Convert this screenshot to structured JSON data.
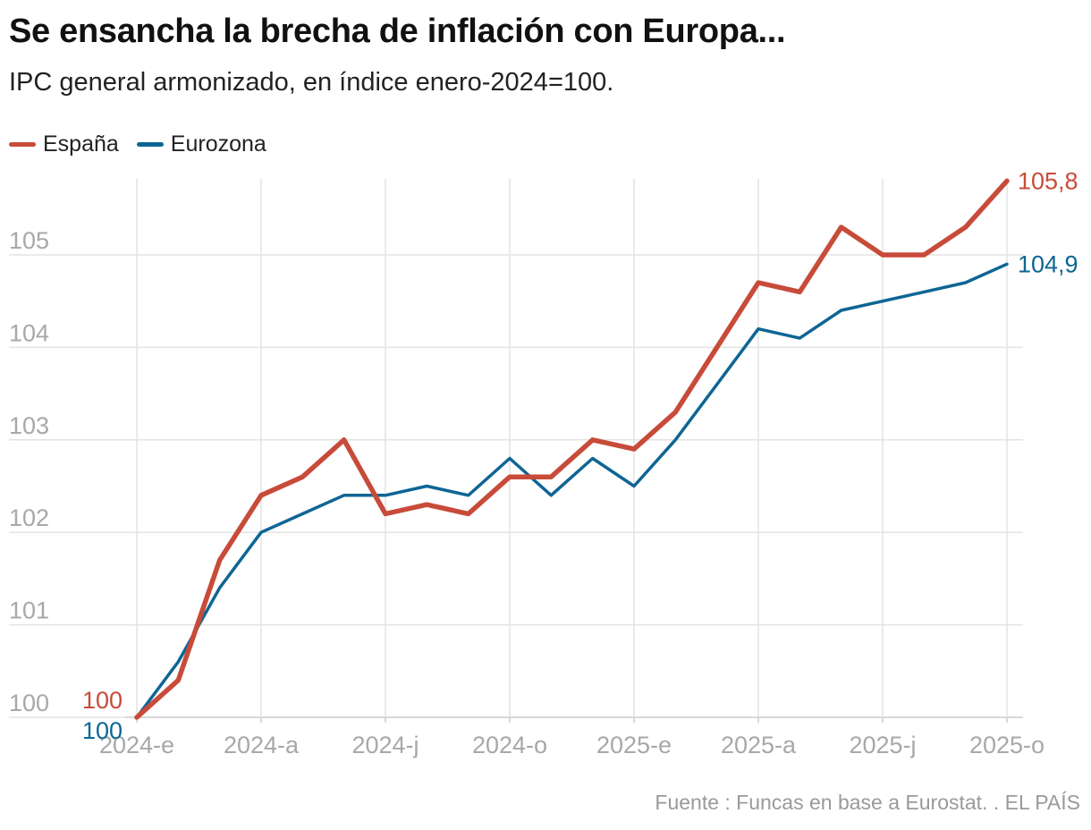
{
  "title": "Se ensancha la brecha de inflación con Europa...",
  "subtitle": "IPC general armonizado, en índice enero-2024=100.",
  "source": "Fuente : Funcas en base a Eurostat. . EL PAÍS",
  "colors": {
    "espana": "#c84b3a",
    "eurozona": "#0e6594",
    "grid": "#e3e3e3",
    "tick_label": "#a8a8a8"
  },
  "chart_data": {
    "type": "line",
    "title": "Se ensancha la brecha de inflación con Europa...",
    "subtitle": "IPC general armonizado, en índice enero-2024=100.",
    "xlabel": "",
    "ylabel": "",
    "ylim": [
      100,
      105.8
    ],
    "y_ticks": [
      100,
      101,
      102,
      103,
      104,
      105
    ],
    "y_tick_labels": [
      "100",
      "101",
      "102",
      "103",
      "104",
      "105"
    ],
    "x_tick_labels": [
      "2024-e",
      "2024-a",
      "2024-j",
      "2024-o",
      "2025-e",
      "2025-a",
      "2025-j",
      "2025-o"
    ],
    "x_tick_positions": [
      0,
      3,
      6,
      9,
      12,
      15,
      18,
      21
    ],
    "grid": true,
    "legend_position": "top-left",
    "series": [
      {
        "name": "España",
        "color": "#c84b3a",
        "values": [
          100.0,
          100.4,
          101.7,
          102.4,
          102.6,
          103.0,
          102.2,
          102.3,
          102.2,
          102.6,
          102.6,
          103.0,
          102.9,
          103.3,
          104.0,
          104.7,
          104.6,
          105.3,
          105.0,
          105.0,
          105.3,
          105.8
        ],
        "start_label": "100",
        "end_label": "105,8"
      },
      {
        "name": "Eurozona",
        "color": "#0e6594",
        "values": [
          100.0,
          100.6,
          101.4,
          102.0,
          102.2,
          102.4,
          102.4,
          102.5,
          102.4,
          102.8,
          102.4,
          102.8,
          102.5,
          103.0,
          103.6,
          104.2,
          104.1,
          104.4,
          104.5,
          104.6,
          104.7,
          104.9
        ],
        "start_label": "100",
        "end_label": "104,9"
      }
    ]
  }
}
